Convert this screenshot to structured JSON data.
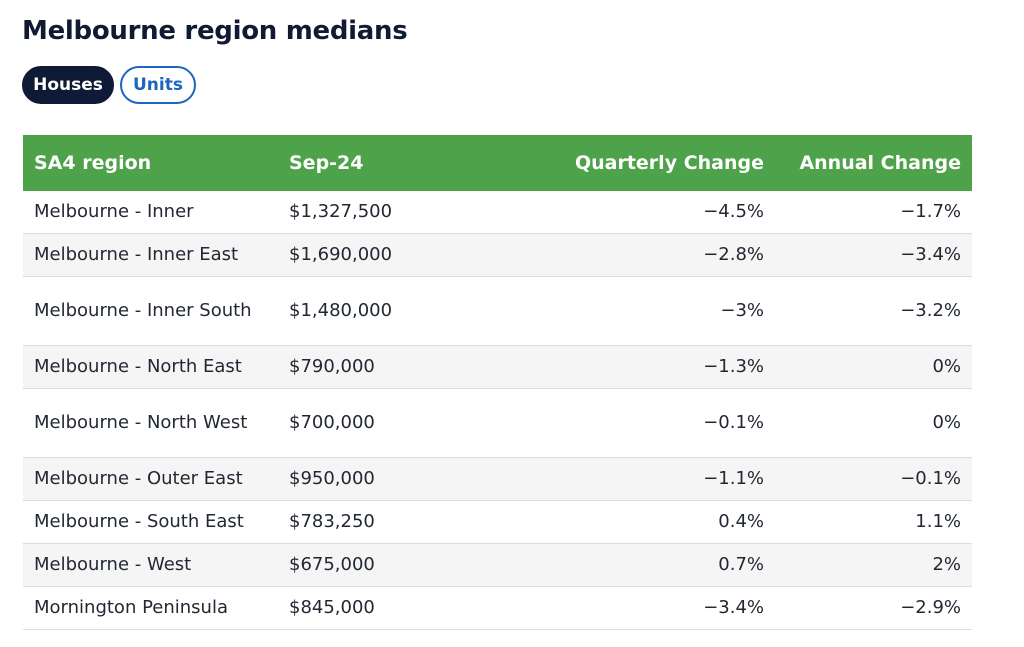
{
  "page": {
    "title": "Melbourne region medians",
    "toggle": {
      "houses_label": "Houses",
      "units_label": "Units",
      "selected": "Houses"
    }
  },
  "table": {
    "headers": [
      "SA4 region",
      "Sep-24",
      "Quarterly Change",
      "Annual Change"
    ],
    "rows": [
      [
        "Melbourne - Inner",
        "$1,327,500",
        "−4.5%",
        "−1.7%"
      ],
      [
        "Melbourne - Inner East",
        "$1,690,000",
        "−2.8%",
        "−3.4%"
      ],
      [
        "Melbourne - Inner South",
        "$1,480,000",
        "−3%",
        "−3.2%"
      ],
      [
        "Melbourne - North East",
        "$790,000",
        "−1.3%",
        "0%"
      ],
      [
        "Melbourne - North West",
        "$700,000",
        "−0.1%",
        "0%"
      ],
      [
        "Melbourne - Outer East",
        "$950,000",
        "−1.1%",
        "−0.1%"
      ],
      [
        "Melbourne - South East",
        "$783,250",
        "0.4%",
        "1.1%"
      ],
      [
        "Melbourne - West",
        "$675,000",
        "0.7%",
        "2%"
      ],
      [
        "Mornington Peninsula",
        "$845,000",
        "−3.4%",
        "−2.9%"
      ]
    ]
  },
  "colors": {
    "header_bg": "#4ea24a",
    "active_pill": "#0e1a36",
    "accent_blue": "#1d66c0"
  }
}
